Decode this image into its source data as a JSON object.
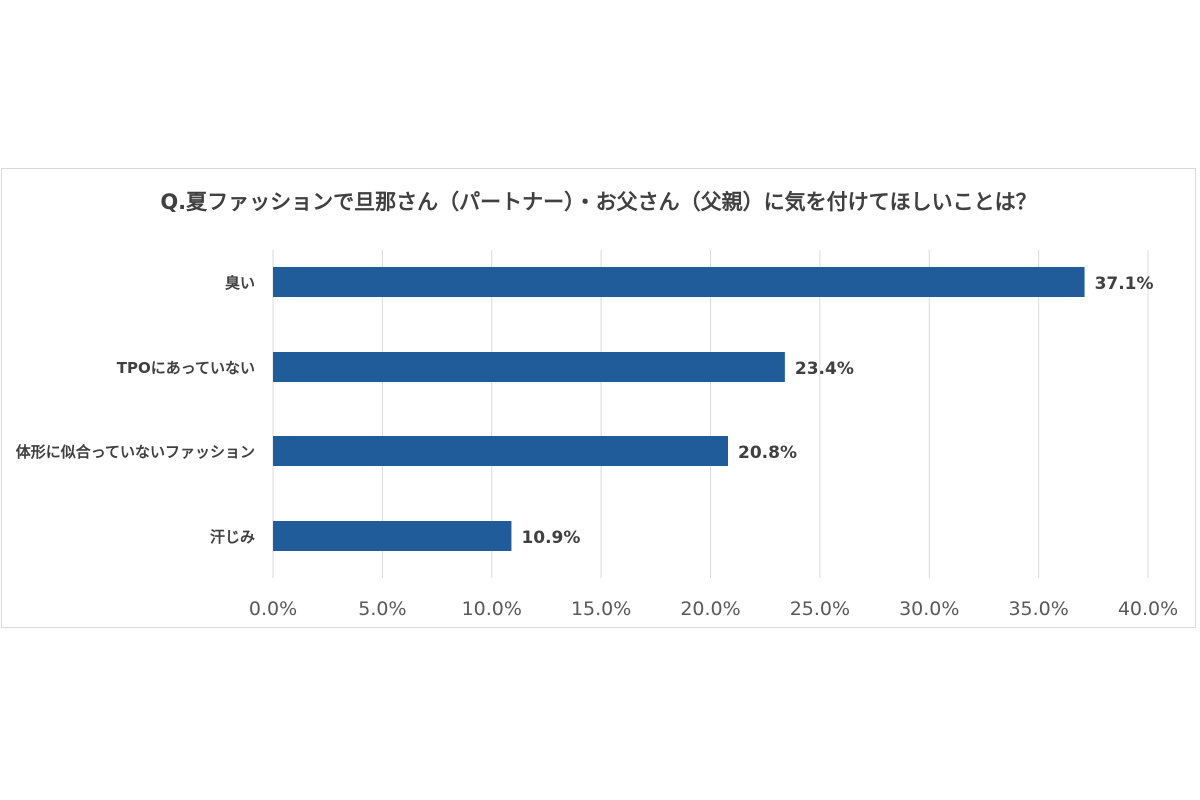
{
  "chart_data": {
    "type": "bar",
    "orientation": "horizontal",
    "title": "Q.夏ファッションで旦那さん（パートナー）・お父さん（父親）に気を付けてほしいことは？",
    "categories": [
      "臭い",
      "TPOにあっていない",
      "体形に似合っていないファッション",
      "汗じみ"
    ],
    "values": [
      37.1,
      23.4,
      20.8,
      10.9
    ],
    "data_labels": [
      "37.1%",
      "23.4%",
      "20.8%",
      "10.9%"
    ],
    "xlim": [
      0,
      40
    ],
    "x_ticks": [
      0,
      5,
      10,
      15,
      20,
      25,
      30,
      35,
      40
    ],
    "x_tick_labels": [
      "0.0%",
      "5.0%",
      "10.0%",
      "15.0%",
      "20.0%",
      "25.0%",
      "30.0%",
      "35.0%",
      "40.0%"
    ],
    "grid": "vertical",
    "legend": "none",
    "bar_color": "#1f5c99",
    "grid_color": "#d9d9d9",
    "text_color": "#404040"
  }
}
